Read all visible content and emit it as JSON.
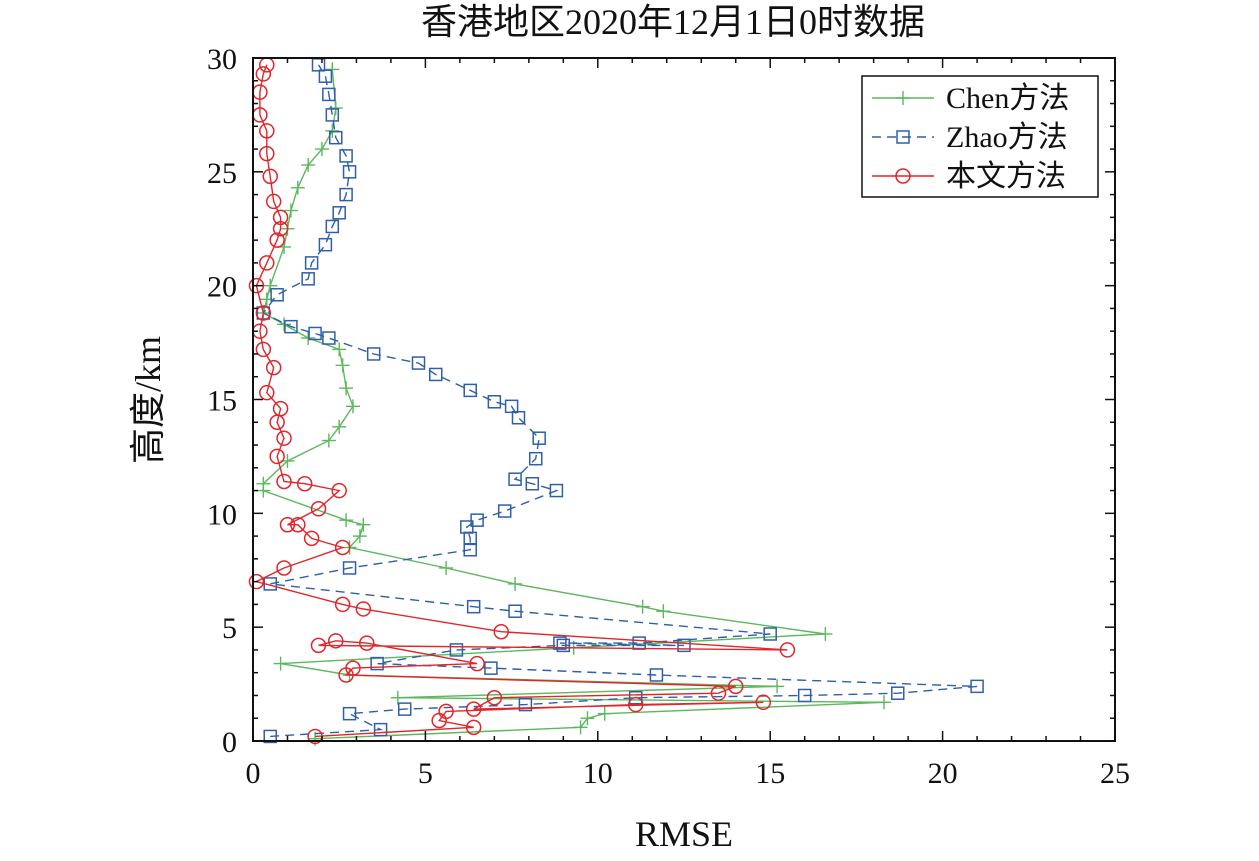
{
  "chart_data": {
    "type": "line",
    "title": "香港地区2020年12月1日0时数据",
    "xlabel": "RMSE",
    "ylabel": "高度/km",
    "xlim": [
      0,
      25
    ],
    "ylim": [
      0,
      30
    ],
    "xticks": [
      "0",
      "5",
      "10",
      "15",
      "20",
      "25"
    ],
    "yticks": [
      "0",
      "5",
      "10",
      "15",
      "20",
      "25",
      "30"
    ],
    "grid": false,
    "legend_position": "top-right",
    "series": [
      {
        "name": "Chen方法",
        "color": "#5cb85c",
        "line_style": "solid",
        "marker": "plus",
        "points": [
          [
            1.8,
            0.1
          ],
          [
            9.5,
            0.6
          ],
          [
            9.7,
            1.0
          ],
          [
            10.2,
            1.2
          ],
          [
            18.3,
            1.7
          ],
          [
            4.2,
            1.9
          ],
          [
            15.2,
            2.4
          ],
          [
            2.8,
            2.9
          ],
          [
            0.8,
            3.4
          ],
          [
            9.3,
            4.1
          ],
          [
            16.6,
            4.7
          ],
          [
            11.9,
            5.7
          ],
          [
            11.3,
            5.9
          ],
          [
            7.6,
            6.9
          ],
          [
            5.6,
            7.6
          ],
          [
            2.8,
            8.5
          ],
          [
            3.1,
            9.0
          ],
          [
            3.2,
            9.5
          ],
          [
            2.7,
            9.7
          ],
          [
            0.3,
            11.0
          ],
          [
            0.3,
            11.3
          ],
          [
            1.0,
            12.3
          ],
          [
            2.2,
            13.2
          ],
          [
            2.5,
            13.8
          ],
          [
            2.9,
            14.7
          ],
          [
            2.7,
            15.5
          ],
          [
            2.6,
            16.5
          ],
          [
            2.5,
            17.2
          ],
          [
            1.6,
            17.7
          ],
          [
            0.9,
            18.3
          ],
          [
            0.3,
            18.8
          ],
          [
            0.4,
            19.4
          ],
          [
            0.5,
            20.0
          ],
          [
            0.9,
            21.7
          ],
          [
            1.0,
            22.5
          ],
          [
            1.1,
            23.3
          ],
          [
            1.3,
            24.3
          ],
          [
            1.6,
            25.3
          ],
          [
            2.0,
            26.0
          ],
          [
            2.3,
            26.8
          ],
          [
            2.4,
            27.8
          ],
          [
            2.3,
            29.5
          ]
        ]
      },
      {
        "name": "Zhao方法",
        "color": "#2f5fa8",
        "line_style": "dashed",
        "marker": "square",
        "points": [
          [
            0.5,
            0.2
          ],
          [
            3.7,
            0.5
          ],
          [
            2.8,
            1.2
          ],
          [
            4.4,
            1.4
          ],
          [
            7.9,
            1.6
          ],
          [
            11.1,
            1.9
          ],
          [
            16.0,
            2.0
          ],
          [
            18.7,
            2.1
          ],
          [
            21.0,
            2.4
          ],
          [
            11.7,
            2.9
          ],
          [
            6.9,
            3.2
          ],
          [
            3.6,
            3.4
          ],
          [
            5.9,
            4.0
          ],
          [
            9.0,
            4.2
          ],
          [
            12.5,
            4.2
          ],
          [
            8.9,
            4.3
          ],
          [
            11.2,
            4.3
          ],
          [
            15.0,
            4.7
          ],
          [
            7.6,
            5.7
          ],
          [
            6.4,
            5.9
          ],
          [
            0.5,
            6.9
          ],
          [
            2.8,
            7.6
          ],
          [
            6.3,
            8.4
          ],
          [
            6.3,
            8.9
          ],
          [
            6.2,
            9.4
          ],
          [
            6.5,
            9.7
          ],
          [
            7.3,
            10.1
          ],
          [
            8.8,
            11.0
          ],
          [
            8.1,
            11.3
          ],
          [
            7.6,
            11.5
          ],
          [
            8.2,
            12.4
          ],
          [
            8.3,
            13.3
          ],
          [
            7.7,
            14.2
          ],
          [
            7.5,
            14.7
          ],
          [
            7.0,
            14.9
          ],
          [
            6.3,
            15.4
          ],
          [
            5.3,
            16.1
          ],
          [
            4.8,
            16.6
          ],
          [
            3.5,
            17.0
          ],
          [
            2.2,
            17.7
          ],
          [
            1.8,
            17.9
          ],
          [
            1.1,
            18.2
          ],
          [
            0.3,
            18.8
          ],
          [
            0.7,
            19.6
          ],
          [
            1.6,
            20.3
          ],
          [
            1.7,
            21.0
          ],
          [
            2.1,
            21.8
          ],
          [
            2.3,
            22.6
          ],
          [
            2.5,
            23.2
          ],
          [
            2.7,
            24.0
          ],
          [
            2.8,
            25.0
          ],
          [
            2.7,
            25.7
          ],
          [
            2.4,
            26.5
          ],
          [
            2.3,
            27.5
          ],
          [
            2.2,
            28.4
          ],
          [
            2.1,
            29.2
          ],
          [
            1.9,
            29.7
          ]
        ]
      },
      {
        "name": "本文方法",
        "color": "#e0262b",
        "line_style": "solid",
        "marker": "circle",
        "points": [
          [
            1.8,
            0.2
          ],
          [
            6.4,
            0.6
          ],
          [
            5.4,
            0.9
          ],
          [
            5.6,
            1.3
          ],
          [
            11.1,
            1.6
          ],
          [
            14.8,
            1.7
          ],
          [
            6.4,
            1.4
          ],
          [
            7.0,
            1.9
          ],
          [
            13.5,
            2.1
          ],
          [
            14.0,
            2.4
          ],
          [
            2.7,
            2.9
          ],
          [
            2.9,
            3.2
          ],
          [
            6.5,
            3.4
          ],
          [
            3.3,
            4.3
          ],
          [
            2.4,
            4.4
          ],
          [
            1.9,
            4.2
          ],
          [
            15.5,
            4.0
          ],
          [
            7.2,
            4.8
          ],
          [
            3.2,
            5.8
          ],
          [
            2.6,
            6.0
          ],
          [
            0.1,
            7.0
          ],
          [
            0.9,
            7.6
          ],
          [
            2.6,
            8.5
          ],
          [
            1.7,
            8.9
          ],
          [
            1.3,
            9.5
          ],
          [
            1.0,
            9.5
          ],
          [
            1.9,
            10.2
          ],
          [
            2.5,
            11.0
          ],
          [
            1.5,
            11.3
          ],
          [
            0.9,
            11.4
          ],
          [
            0.7,
            12.5
          ],
          [
            0.9,
            13.3
          ],
          [
            0.7,
            14.0
          ],
          [
            0.8,
            14.6
          ],
          [
            0.4,
            15.3
          ],
          [
            0.6,
            16.4
          ],
          [
            0.3,
            17.2
          ],
          [
            0.2,
            18.0
          ],
          [
            0.3,
            18.8
          ],
          [
            0.1,
            20.0
          ],
          [
            0.4,
            21.0
          ],
          [
            0.7,
            22.0
          ],
          [
            0.8,
            22.5
          ],
          [
            0.8,
            23.0
          ],
          [
            0.6,
            23.7
          ],
          [
            0.5,
            24.8
          ],
          [
            0.4,
            25.8
          ],
          [
            0.4,
            26.8
          ],
          [
            0.2,
            27.5
          ],
          [
            0.2,
            28.5
          ],
          [
            0.3,
            29.3
          ],
          [
            0.4,
            29.7
          ]
        ]
      }
    ]
  }
}
